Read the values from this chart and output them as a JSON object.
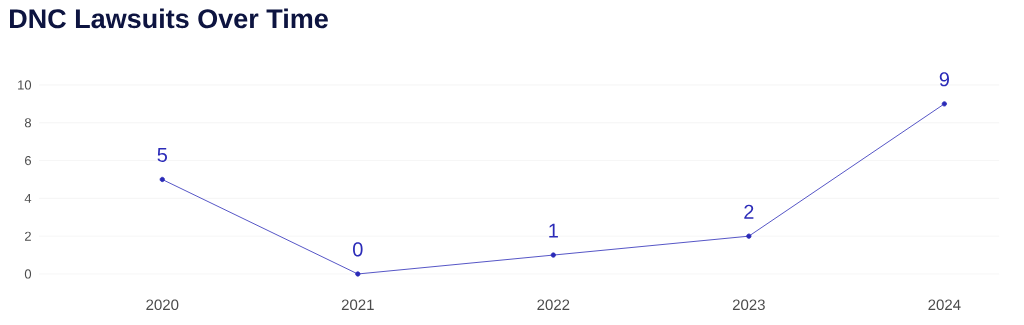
{
  "chart_data": {
    "type": "line",
    "title": "DNC Lawsuits Over Time",
    "categories": [
      "2020",
      "2021",
      "2022",
      "2023",
      "2024"
    ],
    "series": [
      {
        "color": "#2b2bb8",
        "values": [
          5,
          0,
          1,
          2,
          9
        ]
      }
    ],
    "ylim": [
      0,
      10
    ],
    "yticks": [
      0,
      2,
      4,
      6,
      8,
      10
    ],
    "grid": "y",
    "marker": "circle",
    "line_style": "solid",
    "data_labels": true
  }
}
